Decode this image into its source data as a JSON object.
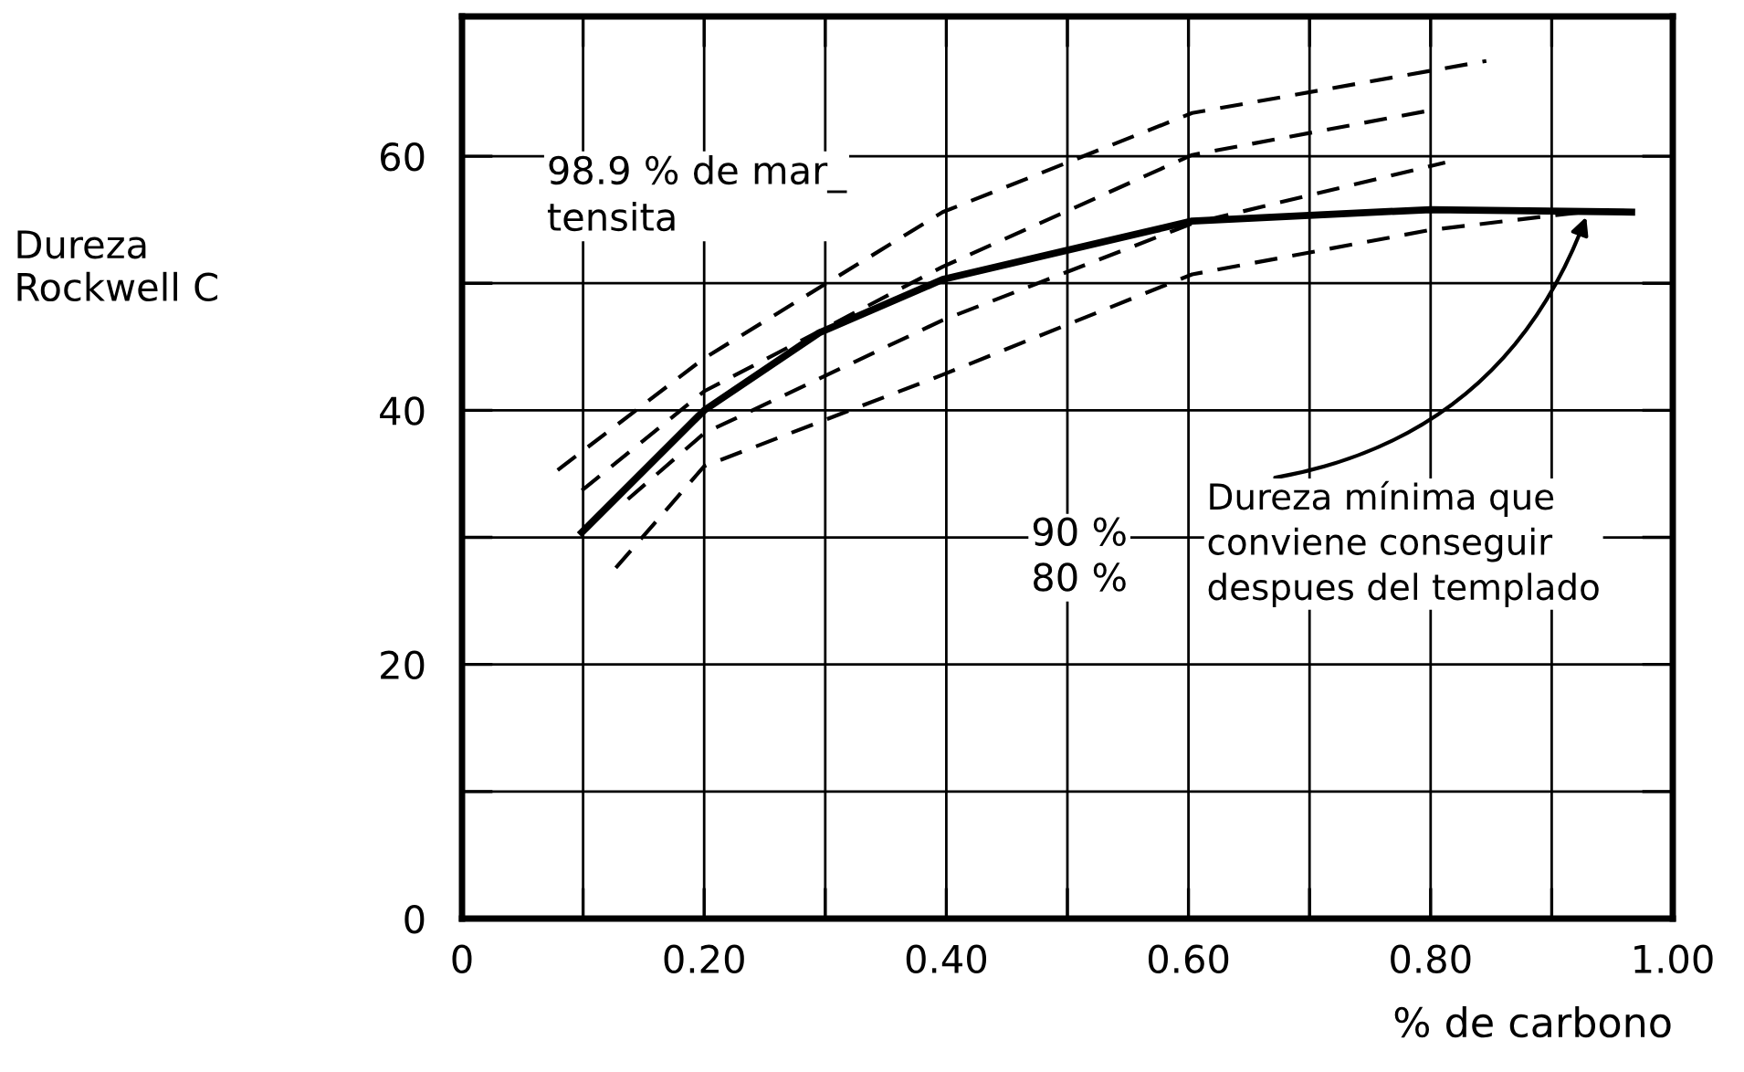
{
  "chart_data": {
    "type": "line",
    "xlabel": "% de carbono",
    "ylabel": "Dureza\nRockwell C",
    "xlim": [
      0,
      1.0
    ],
    "ylim": [
      0,
      71
    ],
    "xticks": [
      0,
      {
        "value": 0.1,
        "label": null
      },
      {
        "value": 0.2,
        "label": "0.20"
      },
      {
        "value": 0.3,
        "label": null
      },
      {
        "value": 0.4,
        "label": "0.40"
      },
      {
        "value": 0.5,
        "label": null
      },
      {
        "value": 0.6,
        "label": "0.60"
      },
      {
        "value": 0.7,
        "label": null
      },
      {
        "value": 0.8,
        "label": "0.80"
      },
      {
        "value": 0.9,
        "label": null
      },
      {
        "value": 1.0,
        "label": "1.00"
      }
    ],
    "yticks": [
      0,
      {
        "value": 10,
        "label": null
      },
      20,
      {
        "value": 30,
        "label": null
      },
      40,
      {
        "value": 50,
        "label": null
      },
      60
    ],
    "grid": true,
    "legend": false,
    "series": [
      {
        "color": "#000000",
        "line_style": "solid",
        "x": [
          0.099,
          0.2,
          0.295,
          0.397,
          0.603,
          0.8,
          0.966
        ],
        "values": [
          30.4,
          40,
          46.1,
          50.3,
          54.9,
          55.8,
          55.6
        ]
      },
      {
        "color": "#000000",
        "line_style": "dashed",
        "x": [
          0.079,
          0.2,
          0.397,
          0.603,
          0.846
        ],
        "values": [
          35.3,
          44.1,
          55.6,
          63.4,
          67.5
        ]
      },
      {
        "color": "#000000",
        "line_style": "dashed",
        "x": [
          0.099,
          0.2,
          0.397,
          0.603,
          0.805
        ],
        "values": [
          33.7,
          41.5,
          51.3,
          60.1,
          63.7
        ]
      },
      {
        "color": "#000000",
        "line_style": "dashed",
        "x": [
          0.137,
          0.2,
          0.397,
          0.603,
          0.812
        ],
        "values": [
          33,
          38.2,
          47.1,
          54.7,
          59.5
        ]
      },
      {
        "color": "#000000",
        "line_style": "dashed",
        "x": [
          0.127,
          0.2,
          0.397,
          0.603,
          0.8,
          0.925
        ],
        "values": [
          27.6,
          35.6,
          42.8,
          50.7,
          54.2,
          55.6
        ]
      }
    ],
    "annotations": [
      "98.9 % de mar_\ntensita",
      "90 %\n80 %",
      {
        "text": "Dureza mínima que\nconviene conseguir\ndespues del templado",
        "x": 0.93,
        "y": 55.6
      }
    ]
  }
}
